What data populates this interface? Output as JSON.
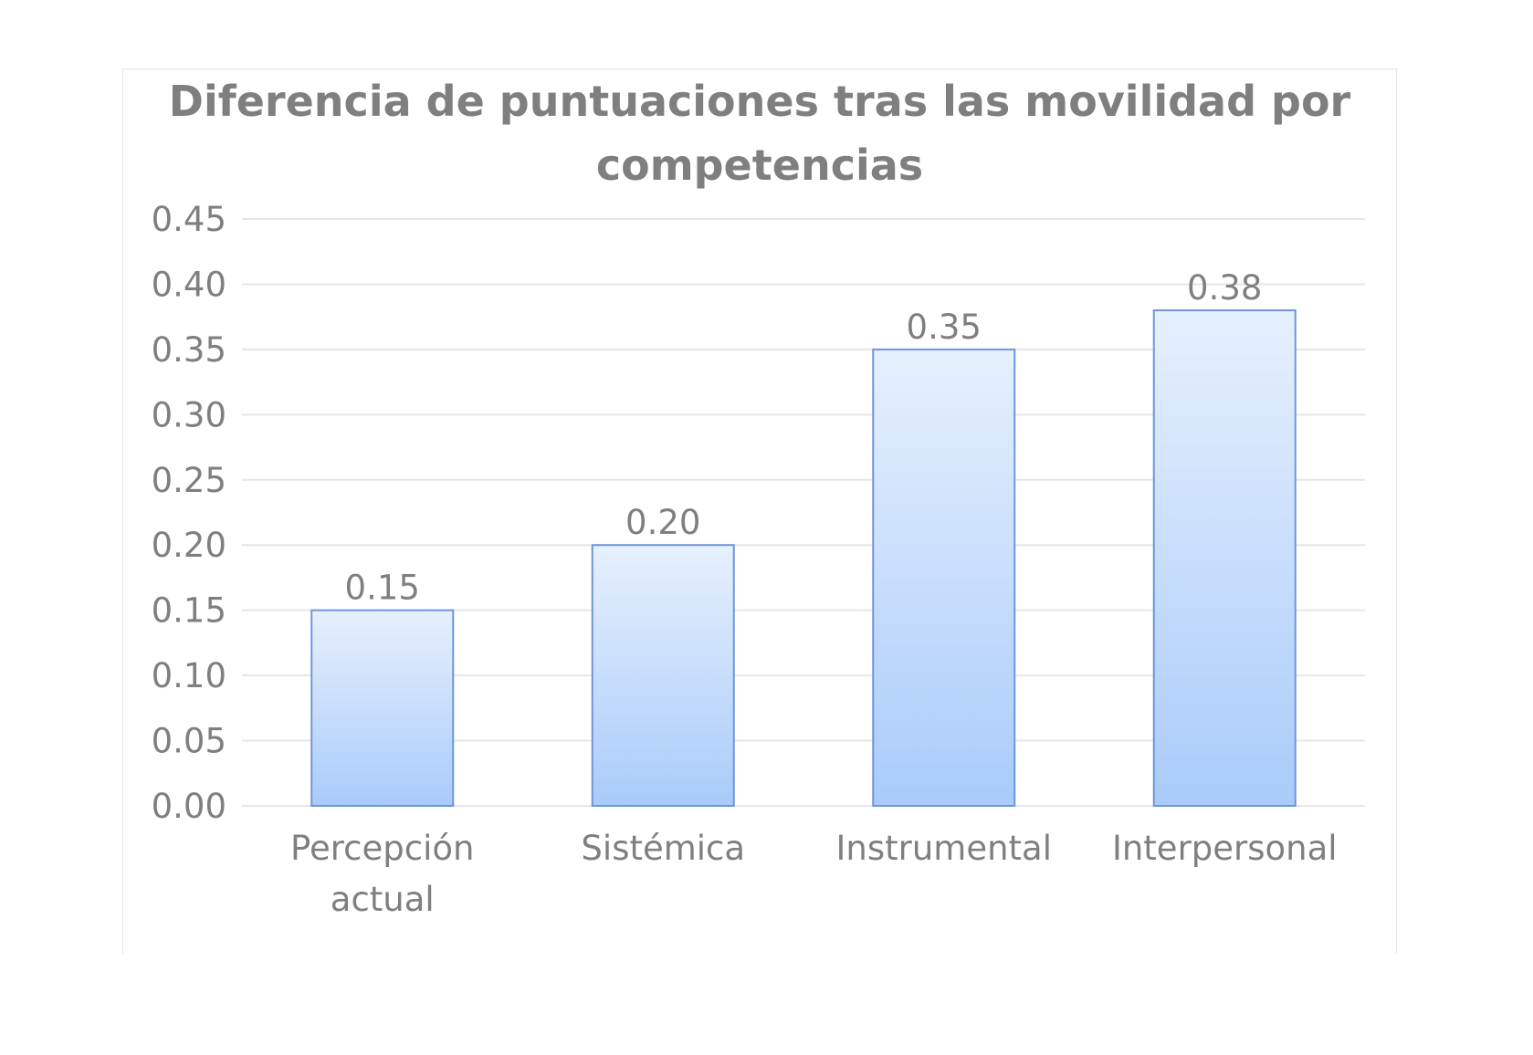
{
  "chart_data": {
    "type": "bar",
    "title": "Diferencia de puntuaciones tras las movilidad por competencias",
    "categories": [
      [
        "Percepción",
        "actual"
      ],
      [
        "Sistémica"
      ],
      [
        "Instrumental"
      ],
      [
        "Interpersonal"
      ]
    ],
    "values": [
      0.15,
      0.2,
      0.35,
      0.38
    ],
    "value_labels": [
      "0.15",
      "0.20",
      "0.35",
      "0.38"
    ],
    "ylim": [
      0,
      0.45
    ],
    "yticks": [
      "0.00",
      "0.05",
      "0.10",
      "0.15",
      "0.20",
      "0.25",
      "0.30",
      "0.35",
      "0.40",
      "0.45"
    ],
    "xlabel": "",
    "ylabel": "",
    "grid": true,
    "legend": "none",
    "colors": {
      "bar_top": "#e6f0fd",
      "bar_bottom": "#a9cbfa",
      "bar_border": "#6f95db",
      "grid": "#e6e6e6",
      "text": "#7f7f7f"
    }
  }
}
